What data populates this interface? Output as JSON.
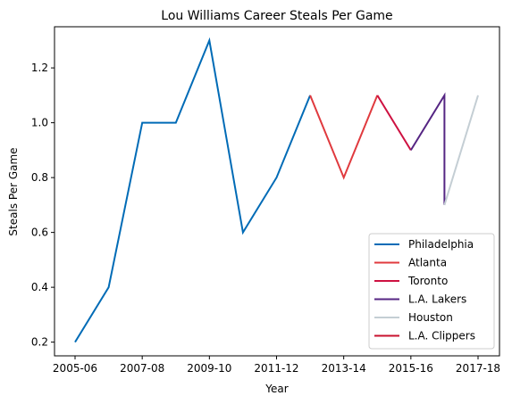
{
  "chart_data": {
    "type": "line",
    "title": "Lou Williams Career Steals Per Game",
    "xlabel": "Year",
    "ylabel": "Steals Per Game",
    "categories": [
      "2005-06",
      "2006-07",
      "2007-08",
      "2008-09",
      "2009-10",
      "2010-11",
      "2011-12",
      "2012-13",
      "2013-14",
      "2014-15",
      "2015-16",
      "2016-17",
      "2017-18"
    ],
    "tick_labels": [
      "2005-06",
      "2007-08",
      "2009-10",
      "2011-12",
      "2013-14",
      "2015-16",
      "2017-18"
    ],
    "yticks": [
      "0.2",
      "0.4",
      "0.6",
      "0.8",
      "1.0",
      "1.2"
    ],
    "ylim": [
      0.15,
      1.35
    ],
    "legend_position": "lower-right",
    "grid": false,
    "series": [
      {
        "name": "Philadelphia",
        "color": "#006BB6",
        "points": [
          [
            "2005-06",
            0.2
          ],
          [
            "2006-07",
            0.4
          ],
          [
            "2007-08",
            1.0
          ],
          [
            "2008-09",
            1.0
          ],
          [
            "2009-10",
            1.3
          ],
          [
            "2010-11",
            0.6
          ],
          [
            "2011-12",
            0.8
          ],
          [
            "2012-13",
            1.1
          ]
        ]
      },
      {
        "name": "Atlanta",
        "color": "#E03A3E",
        "points": [
          [
            "2012-13",
            1.1
          ],
          [
            "2013-14",
            0.8
          ],
          [
            "2014-15",
            1.1
          ]
        ]
      },
      {
        "name": "Toronto",
        "color": "#CE1141",
        "points": [
          [
            "2014-15",
            1.1
          ],
          [
            "2015-16",
            0.9
          ]
        ]
      },
      {
        "name": "L.A. Lakers",
        "color": "#552583",
        "points": [
          [
            "2015-16",
            0.9
          ],
          [
            "2016-17",
            1.1
          ],
          [
            "2016-17",
            0.7
          ]
        ]
      },
      {
        "name": "Houston",
        "color": "#C4CED4",
        "points": [
          [
            "2016-17",
            0.7
          ],
          [
            "2017-18",
            1.1
          ]
        ]
      },
      {
        "name": "L.A. Clippers",
        "color": "#C8102E",
        "points": []
      }
    ]
  }
}
